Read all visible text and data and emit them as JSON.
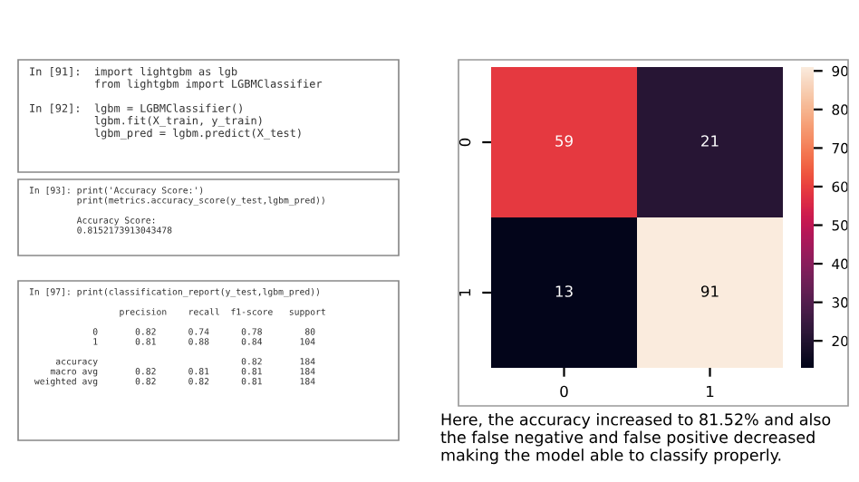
{
  "chart_data": {
    "type": "heatmap",
    "categories": [
      "0",
      "1"
    ],
    "y_categories": [
      "0",
      "1"
    ],
    "cells": [
      [
        59,
        21
      ],
      [
        13,
        91
      ]
    ],
    "data_labels": true,
    "clim": [
      13,
      91
    ],
    "cticks": [
      20,
      30,
      40,
      50,
      60,
      70,
      80,
      90
    ],
    "annotations": [
      "In [91]:  import lightgbm as lgb\n          from lightgbm import LGBMClassifier\n\nIn [92]:  lgbm = LGBMClassifier()\n          lgbm.fit(X_train, y_train)\n          lgbm_pred = lgbm.predict(X_test)",
      "In [93]: print('Accuracy Score:')\n         print(metrics.accuracy_score(y_test,lgbm_pred))\n\n         Accuracy Score:\n         0.8152173913043478",
      "In [97]: print(classification_report(y_test,lgbm_pred))\n\n                 precision    recall  f1-score   support\n\n            0       0.82      0.74      0.78        80\n            1       0.81      0.88      0.84       104\n\n     accuracy                           0.82       184\n    macro avg       0.82      0.81      0.81       184\n weighted avg       0.82      0.82      0.81       184",
      "Here, the accuracy increased to 81.52% and also the false negative and false positive decreased making the model able to classify properly."
    ]
  }
}
